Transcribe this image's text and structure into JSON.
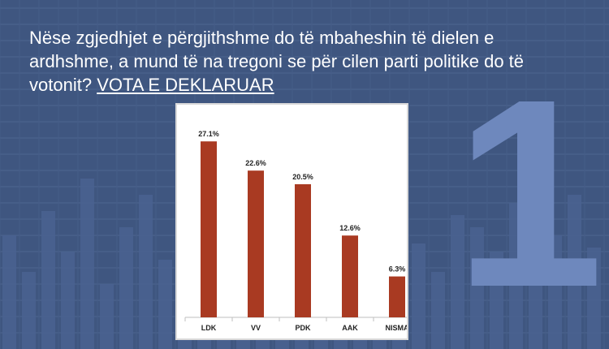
{
  "question": {
    "text": "Nëse zgjedhjet e përgjithshme do të mbaheshin të   dielen e ardhshme, a mund të na tregoni se për cilen parti politike do të votonit?",
    "emphasis": "VOTA E DEKLARUAR"
  },
  "decoration": {
    "big_number": "1"
  },
  "colors": {
    "background": "#3f5680",
    "bar": "#a93a22",
    "big_number": "#6e88bd"
  },
  "chart_data": {
    "type": "bar",
    "categories": [
      "LDK",
      "VV",
      "PDK",
      "AAK",
      "NISMA"
    ],
    "values": [
      27.1,
      22.6,
      20.5,
      12.6,
      6.3
    ],
    "value_labels": [
      "27.1%",
      "22.6%",
      "20.5%",
      "12.6%",
      "6.3%"
    ],
    "ylim": [
      0,
      30
    ],
    "grid": false
  }
}
